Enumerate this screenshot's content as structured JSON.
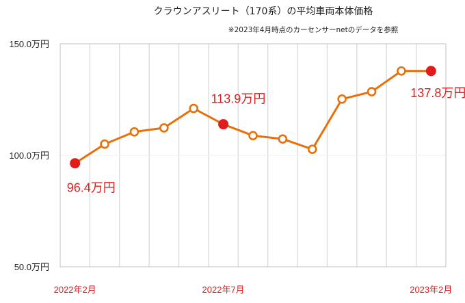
{
  "chart_data": {
    "type": "line",
    "title": "クラウンアスリート（170系）の平均車両本体価格",
    "subtitle": "※2023年4月時点のカーセンサーnetのデータを参照",
    "ylim": [
      50,
      150
    ],
    "y_ticks": [
      {
        "value": 150,
        "label": "150.0万円"
      },
      {
        "value": 100,
        "label": "100.0万円"
      },
      {
        "value": 50,
        "label": "50.0万円"
      }
    ],
    "x_tick_labels": [
      {
        "index": 0,
        "label": "2022年2月"
      },
      {
        "index": 5,
        "label": "2022年7月"
      },
      {
        "index": 12,
        "label": "2023年2月"
      }
    ],
    "grid": "vertical",
    "line_color": "#e8700a",
    "highlight_color": "#e31b1b",
    "series": [
      {
        "values": [
          96.4,
          105.0,
          110.5,
          112.3,
          121.0,
          113.9,
          108.8,
          107.3,
          102.7,
          125.2,
          128.5,
          137.8,
          137.8
        ]
      }
    ],
    "data_labels": [
      {
        "index": 0,
        "label": "96.4万円"
      },
      {
        "index": 5,
        "label": "113.9万円"
      },
      {
        "index": 12,
        "label": "137.8万円"
      }
    ]
  }
}
